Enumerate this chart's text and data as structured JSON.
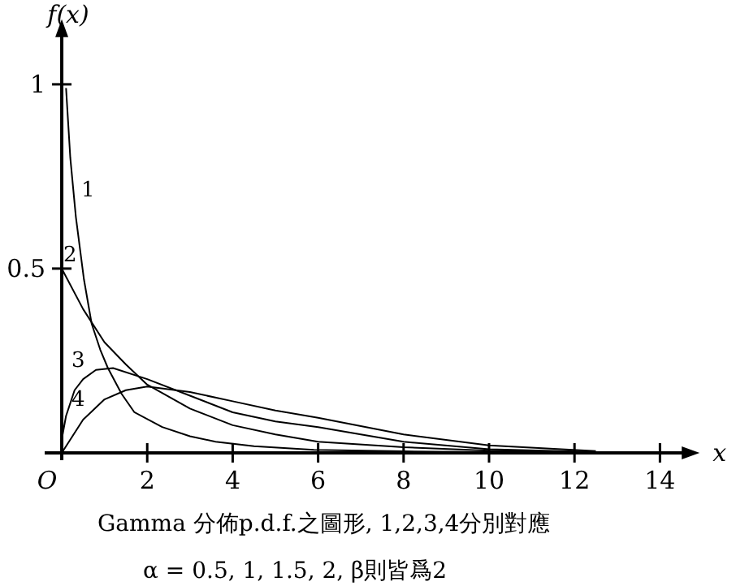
{
  "chart_data": {
    "type": "line",
    "xlabel": "x",
    "ylabel": "f(x)",
    "xlim": [
      -0.4,
      14.7
    ],
    "ylim": [
      -0.02,
      1.15
    ],
    "xticks": [
      2,
      4,
      6,
      8,
      10,
      12,
      14
    ],
    "yticks": [
      0.5,
      1
    ],
    "grid": false,
    "legend": false,
    "marker": "none",
    "line_style": "solid",
    "series": [
      {
        "name": "1",
        "color": "#000000",
        "x": [
          0.1,
          0.2,
          0.33,
          0.52,
          0.7,
          0.9,
          1.08,
          1.4,
          1.7,
          2.35,
          3,
          3.6,
          4.5,
          5.9,
          8,
          10,
          12.5
        ],
        "values": [
          0.99,
          0.8,
          0.64,
          0.47,
          0.35,
          0.28,
          0.23,
          0.16,
          0.11,
          0.07,
          0.045,
          0.03,
          0.018,
          0.008,
          0.004,
          0.002,
          0.001
        ]
      },
      {
        "name": "2",
        "color": "#000000",
        "x": [
          0,
          0.5,
          1,
          1.5,
          2,
          3,
          4,
          5,
          6,
          8,
          10,
          12.4
        ],
        "values": [
          0.5,
          0.39,
          0.3,
          0.24,
          0.185,
          0.12,
          0.075,
          0.05,
          0.03,
          0.015,
          0.006,
          0.002
        ]
      },
      {
        "name": "3",
        "color": "#000000",
        "x": [
          0.02,
          0.1,
          0.3,
          0.5,
          0.8,
          1.2,
          2,
          3,
          4,
          5,
          6,
          8,
          10,
          12.2
        ],
        "values": [
          0.05,
          0.1,
          0.17,
          0.2,
          0.225,
          0.23,
          0.2,
          0.155,
          0.11,
          0.085,
          0.07,
          0.03,
          0.01,
          0.003
        ]
      },
      {
        "name": "4",
        "color": "#000000",
        "x": [
          0,
          0.5,
          1,
          1.5,
          2,
          3,
          4,
          5,
          6,
          8,
          10,
          12.5
        ],
        "values": [
          0,
          0.09,
          0.145,
          0.17,
          0.18,
          0.165,
          0.14,
          0.115,
          0.095,
          0.05,
          0.02,
          0.005
        ]
      }
    ],
    "annotations": [
      "O",
      "Gamma 分佈p.d.f.之圖形, 1,2,3,4分別對應",
      "α = 0.5, 1, 1.5, 2, β則皆爲2"
    ]
  }
}
